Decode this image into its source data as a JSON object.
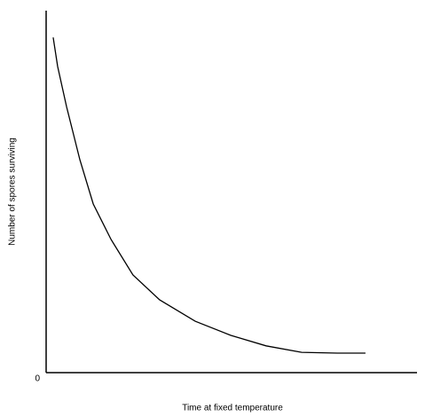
{
  "chart_data": {
    "type": "line",
    "x_label": "Time at fixed temperature",
    "y_label": "Number of spores surviving",
    "x": [
      1.9,
      3.1,
      5.5,
      9.1,
      12.7,
      17.5,
      23.4,
      30.6,
      40.2,
      49.8,
      59.3,
      68.9,
      78.5,
      86.1
    ],
    "values": [
      92.6,
      84.6,
      73.5,
      58.8,
      46.6,
      36.8,
      27.0,
      20.1,
      14.2,
      10.3,
      7.4,
      5.6,
      5.4,
      5.4
    ],
    "color": "#000000",
    "xlim": [
      0,
      100
    ],
    "ylim": [
      0,
      100
    ],
    "yticks": [
      0
    ]
  }
}
